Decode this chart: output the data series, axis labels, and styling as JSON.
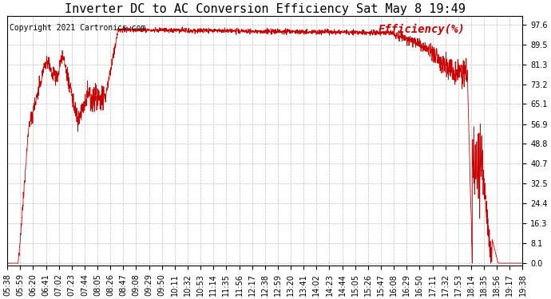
{
  "title": "Inverter DC to AC Conversion Efficiency Sat May 8 19:49",
  "copyright": "Copyright 2021 Cartronics.com",
  "legend_label": "Efficiency(%)",
  "line_color": "#cc0000",
  "background_color": "#ffffff",
  "grid_color": "#b0b0b0",
  "yticks": [
    0.0,
    8.1,
    16.3,
    24.4,
    32.5,
    40.7,
    48.8,
    56.9,
    65.1,
    73.2,
    81.3,
    89.5,
    97.6
  ],
  "x_labels": [
    "05:38",
    "05:59",
    "06:20",
    "06:41",
    "07:02",
    "07:23",
    "07:44",
    "08:05",
    "08:26",
    "08:47",
    "09:08",
    "09:29",
    "09:50",
    "10:11",
    "10:32",
    "10:53",
    "11:14",
    "11:35",
    "11:56",
    "12:17",
    "12:38",
    "12:59",
    "13:20",
    "13:41",
    "14:02",
    "14:23",
    "14:44",
    "15:05",
    "15:26",
    "15:47",
    "16:08",
    "16:29",
    "16:50",
    "17:11",
    "17:32",
    "17:53",
    "18:14",
    "18:35",
    "18:56",
    "19:17",
    "19:38"
  ],
  "title_fontsize": 11,
  "copyright_fontsize": 7,
  "legend_fontsize": 10,
  "tick_fontsize": 7
}
